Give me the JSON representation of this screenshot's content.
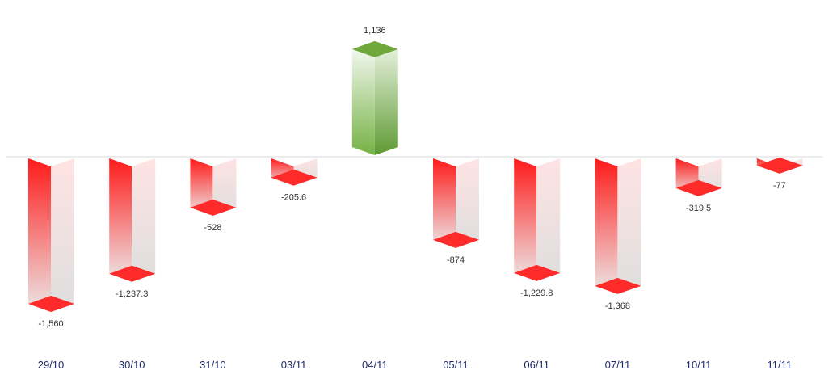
{
  "chart_data": {
    "type": "bar",
    "categories": [
      "29/10",
      "30/10",
      "31/10",
      "03/11",
      "04/11",
      "05/11",
      "06/11",
      "07/11",
      "10/11",
      "11/11"
    ],
    "values": [
      -1560,
      -1237.3,
      -528,
      -205.6,
      1136,
      -874,
      -1229.8,
      -1368,
      -319.5,
      -77
    ],
    "value_labels": [
      "-1,560",
      "-1,237.3",
      "-528",
      "-205.6",
      "1,136",
      "-874",
      "-1,229.8",
      "-1,368",
      "-319.5",
      "-77"
    ],
    "title": "",
    "xlabel": "",
    "ylabel": "",
    "ylim": [
      -1560,
      1136
    ],
    "grid": false,
    "legend": "none",
    "colors": {
      "positive_top": "#6fa83a",
      "positive_front_light": "#eef6e8",
      "positive_front_dark": "#79b548",
      "negative_top": "#ff1f1f",
      "negative_front_light": "#ff1a1a",
      "negative_front_dark": "#ece7e7",
      "negative_side_light": "#ffe9e9",
      "negative_side_dark": "#e2e2e2",
      "baseline": "#d8d8d8",
      "category_text": "#1f2a6b"
    }
  }
}
